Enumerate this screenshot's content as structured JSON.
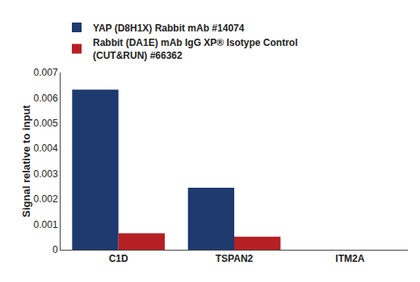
{
  "chart_data": {
    "type": "bar",
    "categories": [
      "C1D",
      "TSPAN2",
      "ITM2A"
    ],
    "series": [
      {
        "name": "YAP (D8H1X) Rabbit mAb #14074",
        "color": "#1e3a6e",
        "values": [
          0.00632,
          0.00245,
          0.0
        ]
      },
      {
        "name": "Rabbit (DA1E) mAb IgG XP® Isotype Control\n(CUT&RUN) #66362",
        "color": "#b52025",
        "values": [
          0.00065,
          0.00052,
          0.0
        ]
      }
    ],
    "ylabel": "Signal relative to input",
    "ylim": [
      0,
      0.007
    ],
    "yticks": [
      0,
      0.001,
      0.002,
      0.003,
      0.004,
      0.005,
      0.006,
      0.007
    ],
    "grid": false,
    "legend": "top left"
  }
}
